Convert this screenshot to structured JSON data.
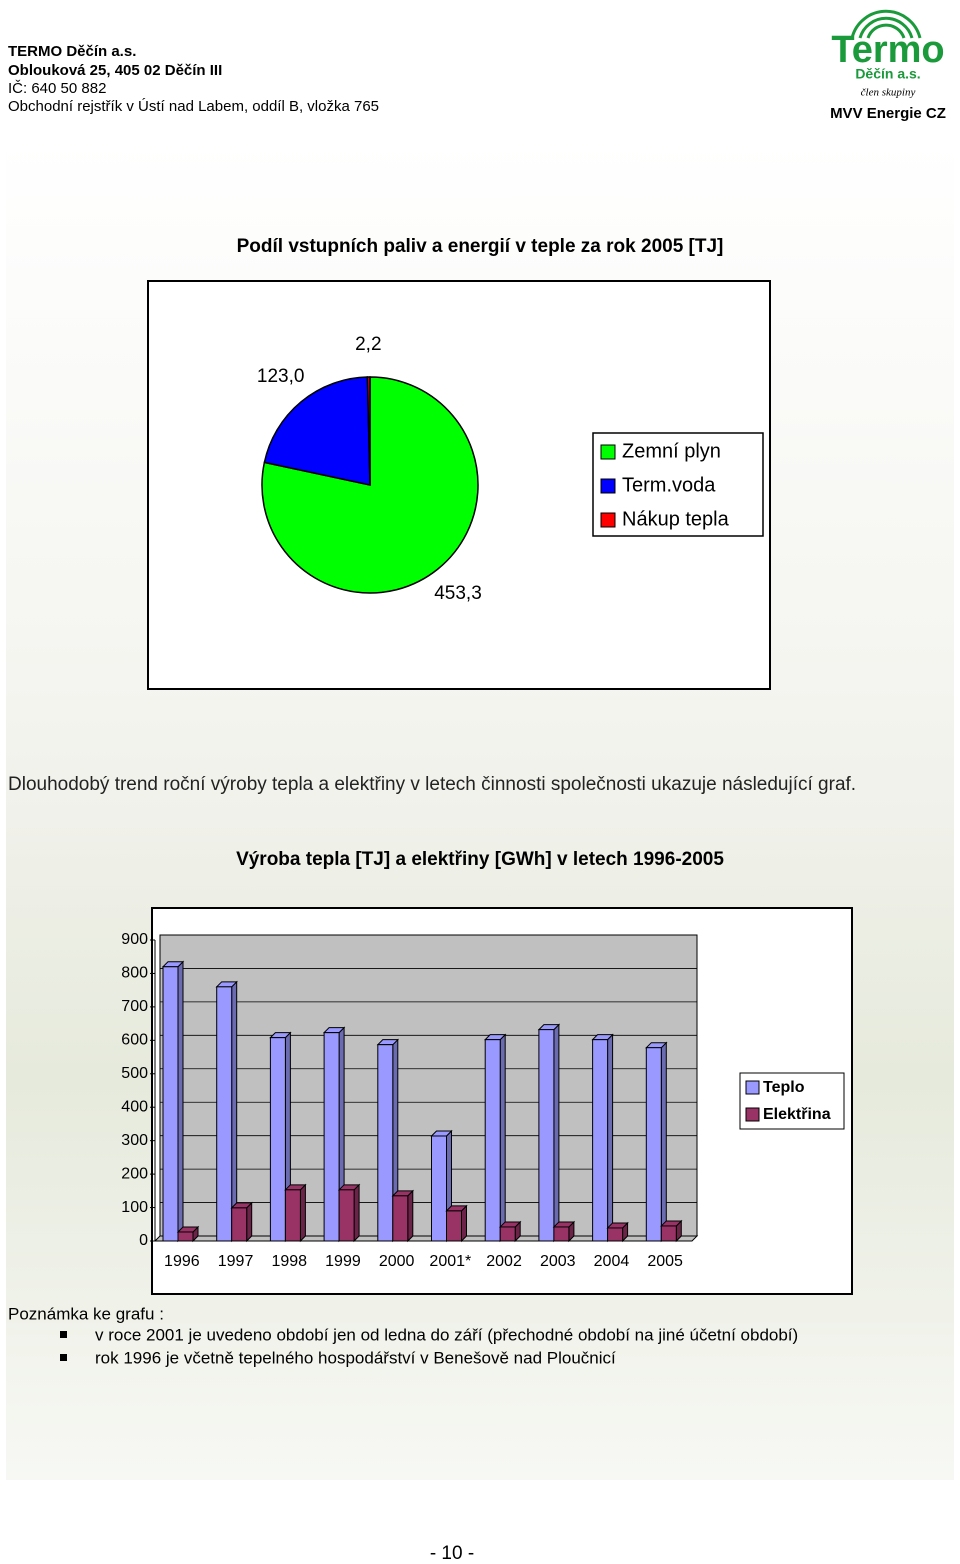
{
  "header": {
    "company": "TERMO Děčín a.s.",
    "address": "Oblouková 25, 405 02 Děčín III",
    "ic": "IČ: 640 50 882",
    "register": "Obchodní rejstřík v Ústí nad Labem, oddíl B, vložka 765"
  },
  "logo": {
    "name": "Termo",
    "city": "Děčín a.s.",
    "member": "člen skupiny",
    "group": "MVV Energie CZ"
  },
  "paragraph": "Dlouhodobý trend roční výroby tepla a elektřiny v letech činnosti společnosti ukazuje následující graf.",
  "chart_data": [
    {
      "type": "pie",
      "title": "Podíl vstupních paliv a energií v teple za rok 2005 [TJ]",
      "categories": [
        "Zemní plyn",
        "Term.voda",
        "Nákup tepla"
      ],
      "values": [
        453.3,
        123.0,
        2.2
      ],
      "value_labels": [
        "453,3",
        "123,0",
        "2,2"
      ],
      "colors": [
        "#00ff00",
        "#0000ff",
        "#ff0000"
      ],
      "legend": "right"
    },
    {
      "type": "bar",
      "title": "Výroba tepla [TJ] a elektřiny [GWh] v letech 1996-2005",
      "categories": [
        "1996",
        "1997",
        "1998",
        "1999",
        "2000",
        "2001*",
        "2002",
        "2003",
        "2004",
        "2005"
      ],
      "series": [
        {
          "name": "Teplo",
          "color": "#9999ff",
          "values": [
            820,
            760,
            608,
            623,
            587,
            314,
            602,
            632,
            602,
            578
          ]
        },
        {
          "name": "Elektřina",
          "color": "#993366",
          "values": [
            27,
            99,
            153,
            153,
            135,
            90,
            42,
            42,
            39,
            45
          ]
        }
      ],
      "ylim": [
        0,
        900
      ],
      "yticks": [
        0,
        100,
        200,
        300,
        400,
        500,
        600,
        700,
        800,
        900
      ],
      "legend": "right"
    }
  ],
  "notes": {
    "title": "Poznámka ke grafu :",
    "items": [
      "v roce 2001 je uvedeno období jen od ledna do září (přechodné období na jiné účetní období)",
      "rok 1996 je včetně tepelného hospodářství v Benešově nad Ploučnicí"
    ]
  },
  "page_number": "- 10 -"
}
